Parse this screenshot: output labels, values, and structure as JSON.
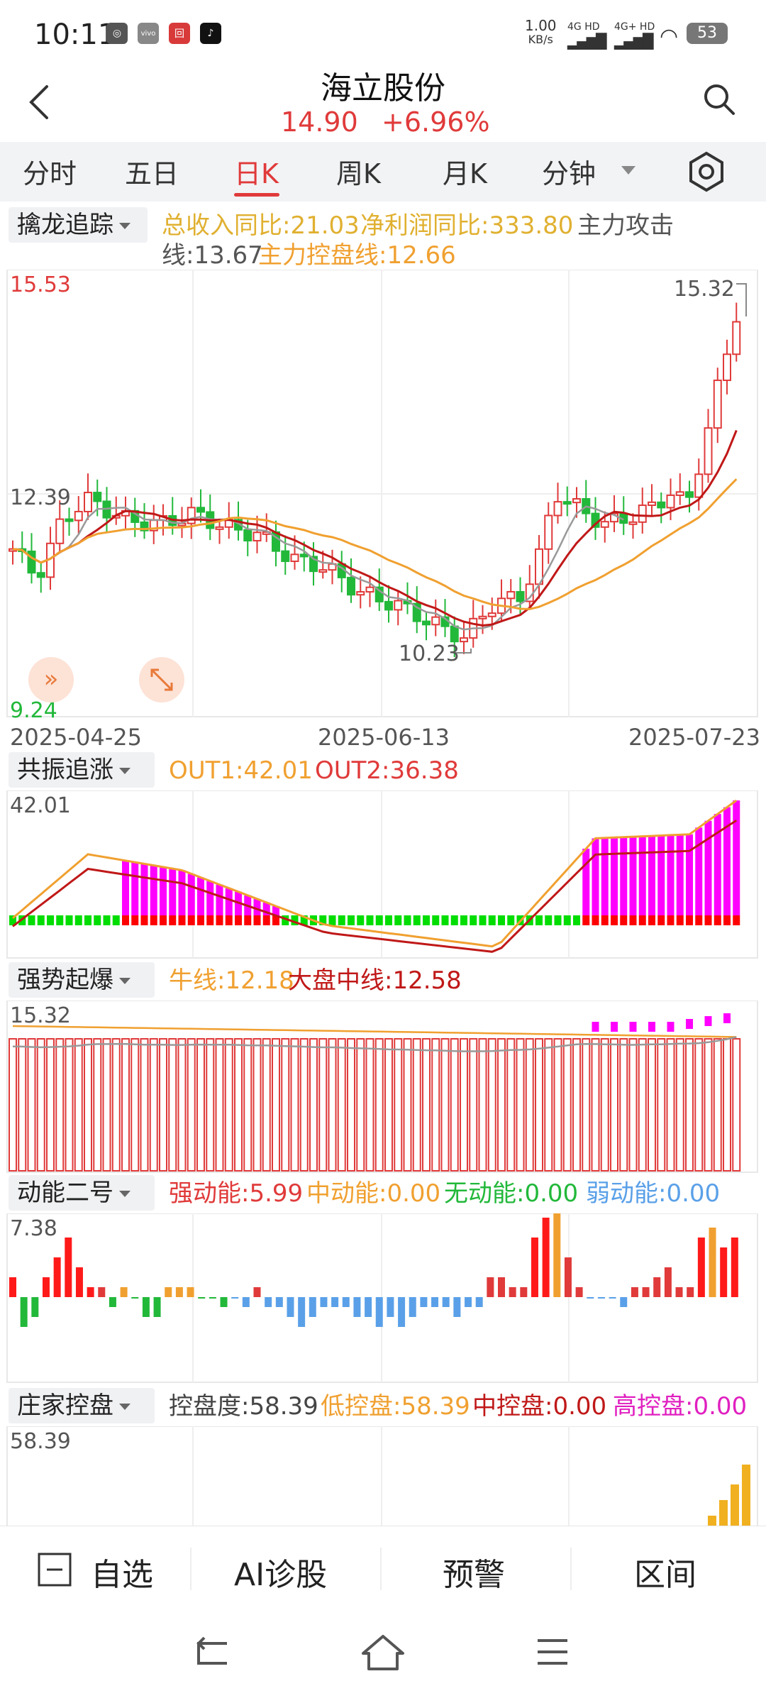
{
  "status_bar": {
    "time": "10:11",
    "speed_value": "1.00",
    "speed_unit": "KB/s",
    "net1": "4G HD",
    "net2": "4G+ HD",
    "battery": "53"
  },
  "header": {
    "title": "海立股份",
    "price": "14.90",
    "change": "+6.96%"
  },
  "tabs": [
    "分时",
    "五日",
    "日K",
    "周K",
    "月K",
    "分钟"
  ],
  "active_tab": "日K",
  "panels": {
    "main": {
      "selector": "擒龙追踪",
      "line1a": "总收入同比:21.03",
      "line1b": "净利润同比:333.80",
      "line1c": "主力攻击",
      "line2a": "线:13.67",
      "line2b": "主力控盘线:12.66",
      "axis_top": "15.53",
      "axis_mid": "12.39",
      "axis_bottom": "9.24",
      "max_label": "15.32",
      "min_label": "10.23",
      "dates": [
        "2025-04-25",
        "2025-06-13",
        "2025-07-23"
      ]
    },
    "p1": {
      "selector": "共振追涨",
      "out1": "OUT1:42.01",
      "out2": "OUT2:36.38",
      "axis_top": "42.01"
    },
    "p2": {
      "selector": "强势起爆",
      "bull": "牛线:12.18",
      "market": "大盘中线:12.58",
      "axis_top": "15.32"
    },
    "p3": {
      "selector": "动能二号",
      "strong": "强动能:5.99",
      "mid": "中动能:0.00",
      "none": "无动能:0.00",
      "weak": "弱动能:0.00",
      "axis_top": "7.38"
    },
    "p4": {
      "selector": "庄家控盘",
      "degree": "控盘度:58.39",
      "low": "低控盘:58.39",
      "mid": "中控盘:0.00",
      "high": "高控盘:0.00",
      "axis_top": "58.39"
    }
  },
  "bottom_bar": {
    "watchlist": "自选",
    "ai": "AI诊股",
    "alert": "预警",
    "range": "区间"
  },
  "colors": {
    "up": "#e03a3a",
    "down": "#22b83a",
    "orange": "#f0a030",
    "gold": "#e0b030",
    "magenta": "#ff00ff",
    "blue": "#5aa0e8",
    "gray": "#999999"
  },
  "icons": [
    "back-icon",
    "search-icon",
    "settings-hex-icon",
    "expand-icon",
    "fullscreen-icon",
    "watchlist-icon",
    "nav-back-icon",
    "nav-home-icon",
    "nav-menu-icon"
  ]
}
